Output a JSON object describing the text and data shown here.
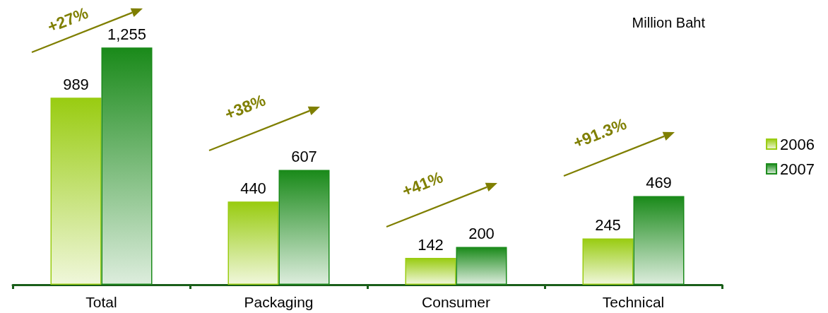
{
  "chart_data": {
    "type": "bar",
    "ylabel": "Million Baht",
    "categories": [
      "Total",
      "Packaging",
      "Consumer",
      "Technical"
    ],
    "series": [
      {
        "name": "2006",
        "color": "#99cc11",
        "values": [
          989,
          440,
          142,
          245
        ],
        "value_labels": [
          "989",
          "440",
          "142",
          "245"
        ]
      },
      {
        "name": "2007",
        "color": "#1a8a1a",
        "values": [
          1255,
          607,
          200,
          469
        ],
        "value_labels": [
          "1,255",
          "607",
          "200",
          "469"
        ]
      }
    ],
    "legend": "right",
    "annotations": [
      "+27%",
      "+38%",
      "+41%",
      "+91.3%"
    ]
  }
}
